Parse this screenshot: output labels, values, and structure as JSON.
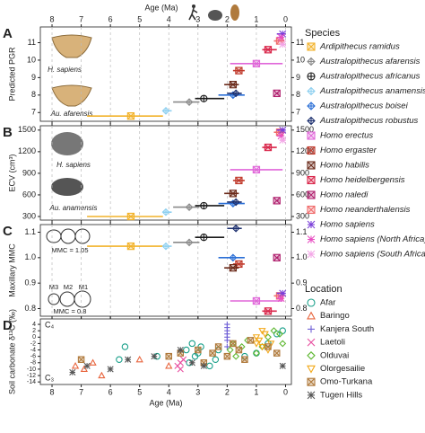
{
  "age_axis": {
    "label": "Age (Ma)",
    "xlim": [
      8.4,
      -0.2
    ],
    "xticks": [
      8,
      7,
      6,
      5,
      4,
      3,
      2,
      1,
      0
    ]
  },
  "species_legend": {
    "title": "Species",
    "items": [
      {
        "name": "Ardipithecus ramidus",
        "color": "#f2b22a",
        "marker": "square-x",
        "age": 5.3,
        "age_range": [
          6.8,
          4.2
        ]
      },
      {
        "name": "Australopithecus afarensis",
        "color": "#8a8a8a",
        "marker": "diamond-plus",
        "age": 3.3,
        "age_range": [
          3.85,
          2.95
        ]
      },
      {
        "name": "Australopithecus africanus",
        "color": "#1a1a1a",
        "marker": "circle-plus",
        "age": 2.8,
        "age_range": [
          3.1,
          2.1
        ]
      },
      {
        "name": "Australopithecus anamensis",
        "color": "#8fd0f0",
        "marker": "diamond-plus",
        "age": 4.1,
        "age_range": [
          4.2,
          3.9
        ]
      },
      {
        "name": "Australopithecus boisei",
        "color": "#2b6fd6",
        "marker": "diamond-plus",
        "age": 1.8,
        "age_range": [
          2.3,
          1.4
        ]
      },
      {
        "name": "Australopithecus robustus",
        "color": "#1c2f6e",
        "marker": "diamond-plus",
        "age": 1.7,
        "age_range": [
          2.0,
          1.5
        ]
      },
      {
        "name": "Homo erectus",
        "color": "#e066d9",
        "marker": "square-x",
        "age": 1.0,
        "age_range": [
          1.9,
          0.1
        ]
      },
      {
        "name": "Homo ergaster",
        "color": "#c0392b",
        "marker": "square-x",
        "age": 1.6,
        "age_range": [
          1.8,
          1.4
        ]
      },
      {
        "name": "Homo habilis",
        "color": "#6b2a1a",
        "marker": "square-x",
        "age": 1.8,
        "age_range": [
          2.1,
          1.6
        ]
      },
      {
        "name": "Homo heidelbergensis",
        "color": "#d9264a",
        "marker": "square-x",
        "age": 0.6,
        "age_range": [
          0.8,
          0.3
        ]
      },
      {
        "name": "Homo naledi",
        "color": "#b0206e",
        "marker": "square-x",
        "age": 0.3,
        "age_range": [
          0.34,
          0.24
        ]
      },
      {
        "name": "Homo neanderthalensis",
        "color": "#f06a6a",
        "marker": "square-x",
        "age": 0.2,
        "age_range": [
          0.4,
          0.04
        ]
      },
      {
        "name": "Homo sapiens",
        "color": "#7b3fd9",
        "marker": "asterisk",
        "age": 0.1,
        "age_range": [
          0.3,
          0
        ]
      },
      {
        "name": "Homo sapiens (North Africa)",
        "color": "#e84fc2",
        "marker": "asterisk",
        "age": 0.15,
        "age_range": [
          0.3,
          0.1
        ]
      },
      {
        "name": "Homo sapiens (South Africa)",
        "color": "#f3a6e6",
        "marker": "asterisk",
        "age": 0.1,
        "age_range": [
          0.2,
          0
        ]
      }
    ]
  },
  "chart_data": [
    {
      "panel": "A",
      "type": "range-scatter",
      "ylabel": "Predicted PGR",
      "ylim": [
        6.5,
        11.9
      ],
      "yticks": [
        7,
        8,
        9,
        10,
        11
      ],
      "values": [
        6.8,
        7.6,
        7.8,
        7.1,
        8.0,
        8.1,
        9.8,
        9.4,
        8.6,
        10.6,
        8.1,
        11.1,
        11.5,
        11.3,
        10.9
      ]
    },
    {
      "panel": "B",
      "type": "range-scatter",
      "ylabel": "ECV (cm³)",
      "ylim": [
        250,
        1560
      ],
      "yticks": [
        300,
        600,
        900,
        1200,
        1500
      ],
      "values": [
        300,
        430,
        450,
        360,
        480,
        500,
        950,
        800,
        620,
        1260,
        520,
        1470,
        1500,
        1420,
        1360
      ]
    },
    {
      "panel": "C",
      "type": "range-scatter",
      "ylabel": "Maxillary MMC",
      "ylim": [
        0.77,
        1.13
      ],
      "yticks": [
        0.8,
        0.9,
        {
          "value": 1.0,
          "label": "1.0"
        },
        1.1
      ],
      "values": [
        1.045,
        1.06,
        1.08,
        1.045,
        1.0,
        1.115,
        0.83,
        0.975,
        0.96,
        0.79,
        1.0,
        0.85,
        0.86,
        0.84,
        null
      ]
    },
    {
      "panel": "D",
      "type": "scatter",
      "ylabel": "Soil carbonate δ¹³C (‰)",
      "ylim": [
        -14.8,
        5.7
      ],
      "yticks": [
        4,
        2,
        0,
        -2,
        -4,
        -6,
        -8,
        -10,
        -12,
        -14
      ],
      "top_label": "C₄",
      "bottom_label": "C₃",
      "legend_title": "Location",
      "series": [
        {
          "name": "Afar",
          "color": "#1aa08a",
          "marker": "circle",
          "x": [
            5.7,
            5.5,
            4.4,
            3.4,
            3.3,
            3.2,
            3.1,
            3.0,
            2.9,
            2.6,
            2.4,
            2.3,
            1.4,
            1.0,
            0.6,
            0.3,
            0.1
          ],
          "values": [
            -7,
            -3,
            -6,
            -4,
            -8,
            -2,
            -6,
            -5,
            -3,
            -9,
            -7,
            -4,
            -6,
            -5,
            -2,
            1,
            2
          ]
        },
        {
          "name": "Baringo",
          "color": "#e8643c",
          "marker": "triangle",
          "x": [
            7.2,
            6.9,
            6.6,
            6.3,
            5.0,
            4.0
          ],
          "values": [
            -9,
            -10,
            -8,
            -12,
            -7,
            -9
          ]
        },
        {
          "name": "Kanjera South",
          "color": "#6f5fd6",
          "marker": "plus",
          "x": [
            2.0,
            2.0,
            2.0,
            2.0,
            2.0,
            2.0,
            2.0
          ],
          "values": [
            4,
            3,
            2,
            1,
            0,
            -1,
            -3
          ]
        },
        {
          "name": "Laetoli",
          "color": "#e84fa0",
          "marker": "x",
          "x": [
            3.7,
            3.6,
            3.6,
            3.5
          ],
          "values": [
            -9,
            -8,
            -10,
            -7
          ]
        },
        {
          "name": "Olduvai",
          "color": "#5fb832",
          "marker": "diamond",
          "x": [
            1.9,
            1.8,
            1.7,
            1.5,
            1.3,
            1.0,
            0.8,
            0.6,
            0.4,
            0.2,
            0.1
          ],
          "values": [
            -4,
            -2,
            -6,
            -3,
            -1,
            -5,
            -3,
            0,
            2,
            1,
            -2
          ]
        },
        {
          "name": "Olorgesailie",
          "color": "#f2a818",
          "marker": "triangle-down",
          "x": [
            1.0,
            1.0,
            0.9,
            0.8,
            0.8,
            0.7,
            0.6,
            0.5
          ],
          "values": [
            -2,
            0,
            -1,
            2,
            -3,
            1,
            -4,
            -2
          ]
        },
        {
          "name": "Omo-Turkana",
          "color": "#b07a3c",
          "marker": "square-x",
          "x": [
            7.0,
            4.0,
            3.6,
            3.0,
            2.8,
            2.5,
            2.3,
            2.0,
            1.8,
            1.6,
            1.4,
            1.2,
            0.6,
            0.3
          ],
          "values": [
            -7,
            -6,
            -5,
            -4,
            -8,
            -5,
            -3,
            -6,
            -2,
            -4,
            -7,
            -1,
            -3,
            -5
          ]
        },
        {
          "name": "Tugen Hills",
          "color": "#555555",
          "marker": "asterisk",
          "x": [
            7.3,
            6.8,
            6.0,
            5.4,
            4.5,
            3.6,
            3.2,
            2.8,
            0.1
          ],
          "values": [
            -11,
            -9,
            -10,
            -7,
            -6,
            -4,
            -8,
            -9,
            -9
          ]
        }
      ]
    }
  ],
  "annotations": {
    "a_top": "H. sapiens",
    "a_bottom": "Au. afarensis",
    "b_top": "H. sapiens",
    "b_bottom": "Au. anamensis",
    "c_top": "MMC = 1.05",
    "c_m3": "M3",
    "c_m2": "M2",
    "c_m1": "M1",
    "c_bottom": "MMC = 0.8"
  }
}
